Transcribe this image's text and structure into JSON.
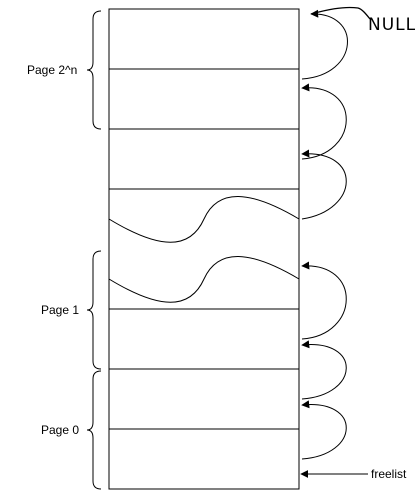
{
  "labels": {
    "page_2n": "Page 2^n",
    "page_1": "Page 1",
    "page_0": "Page 0",
    "freelist": "freelist",
    "null": "NULL"
  },
  "colors": {
    "stroke": "#000000",
    "background": "#ffffff"
  }
}
